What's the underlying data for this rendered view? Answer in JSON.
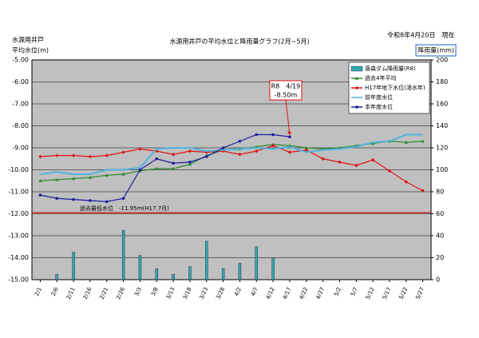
{
  "chart_data": {
    "type": "combo",
    "title": "水源用井戸の平均水位と降雨量グラフ(2月~5月)",
    "date_note": "令和8年4月20日　現在",
    "y_label": [
      "水源用井戸",
      "平均水位(m)"
    ],
    "y2_label": "降雨量(mm)",
    "categories": [
      "2/1",
      "2/6",
      "2/11",
      "2/16",
      "2/21",
      "2/26",
      "3/3",
      "3/8",
      "3/13",
      "3/18",
      "3/23",
      "3/28",
      "4/2",
      "4/7",
      "4/12",
      "4/17",
      "4/22",
      "4/27",
      "5/2",
      "5/7",
      "5/12",
      "5/17",
      "5/22",
      "5/27"
    ],
    "ylim": [
      -5,
      -15
    ],
    "yticks": [
      {
        "value": -5,
        "label": "-5.00"
      },
      {
        "value": -6,
        "label": "-6.00"
      },
      {
        "value": -7,
        "label": "-7.00"
      },
      {
        "value": -8,
        "label": "-8.00"
      },
      {
        "value": -9,
        "label": "-9.00"
      },
      {
        "value": -10,
        "label": "-10.00"
      },
      {
        "value": -11,
        "label": "-11.00"
      },
      {
        "value": -12,
        "label": "-12.00"
      },
      {
        "value": -13,
        "label": "-13.00"
      },
      {
        "value": -14,
        "label": "-14.00"
      },
      {
        "value": -15,
        "label": "-15.00"
      }
    ],
    "y2lim": [
      0,
      200
    ],
    "y2ticks": [
      0,
      20,
      40,
      60,
      80,
      100,
      120,
      140,
      160,
      180,
      200
    ],
    "grid": true,
    "background": "#c0c0c0",
    "series": [
      {
        "name": "唐森ダム降雨量(R8)",
        "type": "bar",
        "axis": "y2",
        "color": "#33aaaa",
        "values": [
          0,
          5,
          25,
          0,
          0,
          45,
          22,
          10,
          5,
          12,
          35,
          10,
          15,
          30,
          20,
          0,
          0,
          0,
          0,
          0,
          0,
          0,
          0,
          0
        ]
      },
      {
        "name": "過去4年平均",
        "type": "line",
        "marker": "triangle",
        "color": "#2e8b2e",
        "values": [
          -10.5,
          -10.45,
          -10.4,
          -10.35,
          -10.25,
          -10.2,
          -10.05,
          -9.95,
          -9.95,
          -9.75,
          -9.35,
          -9.1,
          -9.05,
          -8.95,
          -8.85,
          -8.9,
          -9.0,
          -9.05,
          -9.0,
          -8.9,
          -8.8,
          -8.7,
          -8.75,
          -8.7
        ]
      },
      {
        "name": "H17年地下水位(渇水年)",
        "type": "line",
        "marker": "diamond",
        "color": "#e01010",
        "values": [
          -9.4,
          -9.35,
          -9.35,
          -9.4,
          -9.35,
          -9.2,
          -9.05,
          -9.15,
          -9.3,
          -9.15,
          -9.2,
          -9.15,
          -9.3,
          -9.15,
          -8.9,
          -9.2,
          -9.1,
          -9.5,
          -9.65,
          -9.8,
          -9.55,
          -10.05,
          -10.55,
          -10.95
        ]
      },
      {
        "name": "前年度水位",
        "type": "line",
        "marker": "none",
        "color": "#4fb3e0",
        "values": [
          -10.2,
          -10.1,
          -10.2,
          -10.2,
          -10.0,
          -10.0,
          -9.9,
          -9.05,
          -9.0,
          -9.0,
          -9.15,
          -9.1,
          -9.05,
          -9.0,
          -9.05,
          -8.95,
          -9.2,
          -9.1,
          -9.05,
          -8.95,
          -8.75,
          -8.7,
          -8.4,
          -8.4
        ]
      },
      {
        "name": "本年度水位",
        "type": "line",
        "marker": "circle",
        "color": "#1a1aa0",
        "values": [
          -11.15,
          -11.3,
          -11.35,
          -11.4,
          -11.45,
          -11.3,
          -10.0,
          -9.5,
          -9.7,
          -9.65,
          -9.4,
          -9.0,
          -8.7,
          -8.4,
          -8.4,
          -8.5,
          null,
          null,
          null,
          null,
          null,
          null,
          null,
          null
        ]
      }
    ],
    "reference_line": {
      "value": -11.95,
      "label": "過去最低水位　-11.95ｍ(H17.7月)",
      "color": "#e01010"
    },
    "annotation": {
      "lines": [
        "R8　4/19",
        "-8.50m"
      ],
      "color": "#e01010"
    }
  }
}
